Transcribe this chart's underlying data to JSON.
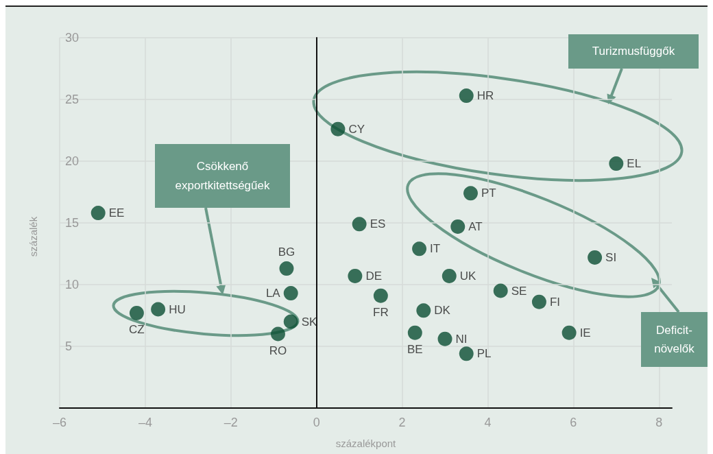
{
  "chart_data": {
    "type": "scatter",
    "xlabel": "százalékpont",
    "ylabel": "százalék",
    "xlim": [
      -6,
      8.3
    ],
    "xticks": [
      {
        "value": -6,
        "label": "–6"
      },
      {
        "value": -4,
        "label": "–4"
      },
      {
        "value": -2,
        "label": "–2"
      },
      0,
      2,
      4,
      6,
      8
    ],
    "ylim": [
      0,
      30
    ],
    "yticks": [
      5,
      10,
      15,
      20,
      25,
      30
    ],
    "grid": true,
    "legend": false,
    "marker": "circle",
    "annotations": [
      "Turizmusfüggők",
      "Csökkenő exportkitettségűek",
      "Deficit-növelők"
    ],
    "series": [
      {
        "name": "EE",
        "color": "#0b4f33",
        "x": [
          -5.1
        ],
        "values": [
          15.8
        ]
      },
      {
        "name": "CZ",
        "color": "#0b4f33",
        "x": [
          -4.2
        ],
        "values": [
          7.7
        ]
      },
      {
        "name": "HU",
        "color": "#0b4f33",
        "x": [
          -3.7
        ],
        "values": [
          8.0
        ]
      },
      {
        "name": "BG",
        "color": "#0b4f33",
        "x": [
          -0.7
        ],
        "values": [
          11.3
        ]
      },
      {
        "name": "LA",
        "color": "#0b4f33",
        "x": [
          -0.6
        ],
        "values": [
          9.3
        ]
      },
      {
        "name": "SK",
        "color": "#0b4f33",
        "x": [
          -0.6
        ],
        "values": [
          7.0
        ]
      },
      {
        "name": "RO",
        "color": "#0b4f33",
        "x": [
          -0.9
        ],
        "values": [
          6.0
        ]
      },
      {
        "name": "CY",
        "color": "#0b4f33",
        "x": [
          0.5
        ],
        "values": [
          22.6
        ]
      },
      {
        "name": "ES",
        "color": "#0b4f33",
        "x": [
          1.0
        ],
        "values": [
          14.9
        ]
      },
      {
        "name": "DE",
        "color": "#0b4f33",
        "x": [
          0.9
        ],
        "values": [
          10.7
        ]
      },
      {
        "name": "FR",
        "color": "#0b4f33",
        "x": [
          1.5
        ],
        "values": [
          9.1
        ]
      },
      {
        "name": "IT",
        "color": "#0b4f33",
        "x": [
          2.4
        ],
        "values": [
          12.9
        ]
      },
      {
        "name": "HR",
        "color": "#0b4f33",
        "x": [
          3.5
        ],
        "values": [
          25.3
        ]
      },
      {
        "name": "PT",
        "color": "#0b4f33",
        "x": [
          3.6
        ],
        "values": [
          17.4
        ]
      },
      {
        "name": "AT",
        "color": "#0b4f33",
        "x": [
          3.3
        ],
        "values": [
          14.7
        ]
      },
      {
        "name": "UK",
        "color": "#0b4f33",
        "x": [
          3.1
        ],
        "values": [
          10.7
        ]
      },
      {
        "name": "DK",
        "color": "#0b4f33",
        "x": [
          2.5
        ],
        "values": [
          7.9
        ]
      },
      {
        "name": "BE",
        "color": "#0b4f33",
        "x": [
          2.3
        ],
        "values": [
          6.1
        ]
      },
      {
        "name": "NI",
        "color": "#0b4f33",
        "x": [
          3.0
        ],
        "values": [
          5.6
        ]
      },
      {
        "name": "PL",
        "color": "#0b4f33",
        "x": [
          3.5
        ],
        "values": [
          4.4
        ]
      },
      {
        "name": "SE",
        "color": "#0b4f33",
        "x": [
          4.3
        ],
        "values": [
          9.5
        ]
      },
      {
        "name": "FI",
        "color": "#0b4f33",
        "x": [
          5.2
        ],
        "values": [
          8.6
        ]
      },
      {
        "name": "IE",
        "color": "#0b4f33",
        "x": [
          5.9
        ],
        "values": [
          6.1
        ]
      },
      {
        "name": "SI",
        "color": "#0b4f33",
        "x": [
          6.5
        ],
        "values": [
          12.2
        ]
      },
      {
        "name": "EL",
        "color": "#0b4f33",
        "x": [
          7.0
        ],
        "values": [
          19.8
        ]
      }
    ]
  }
}
